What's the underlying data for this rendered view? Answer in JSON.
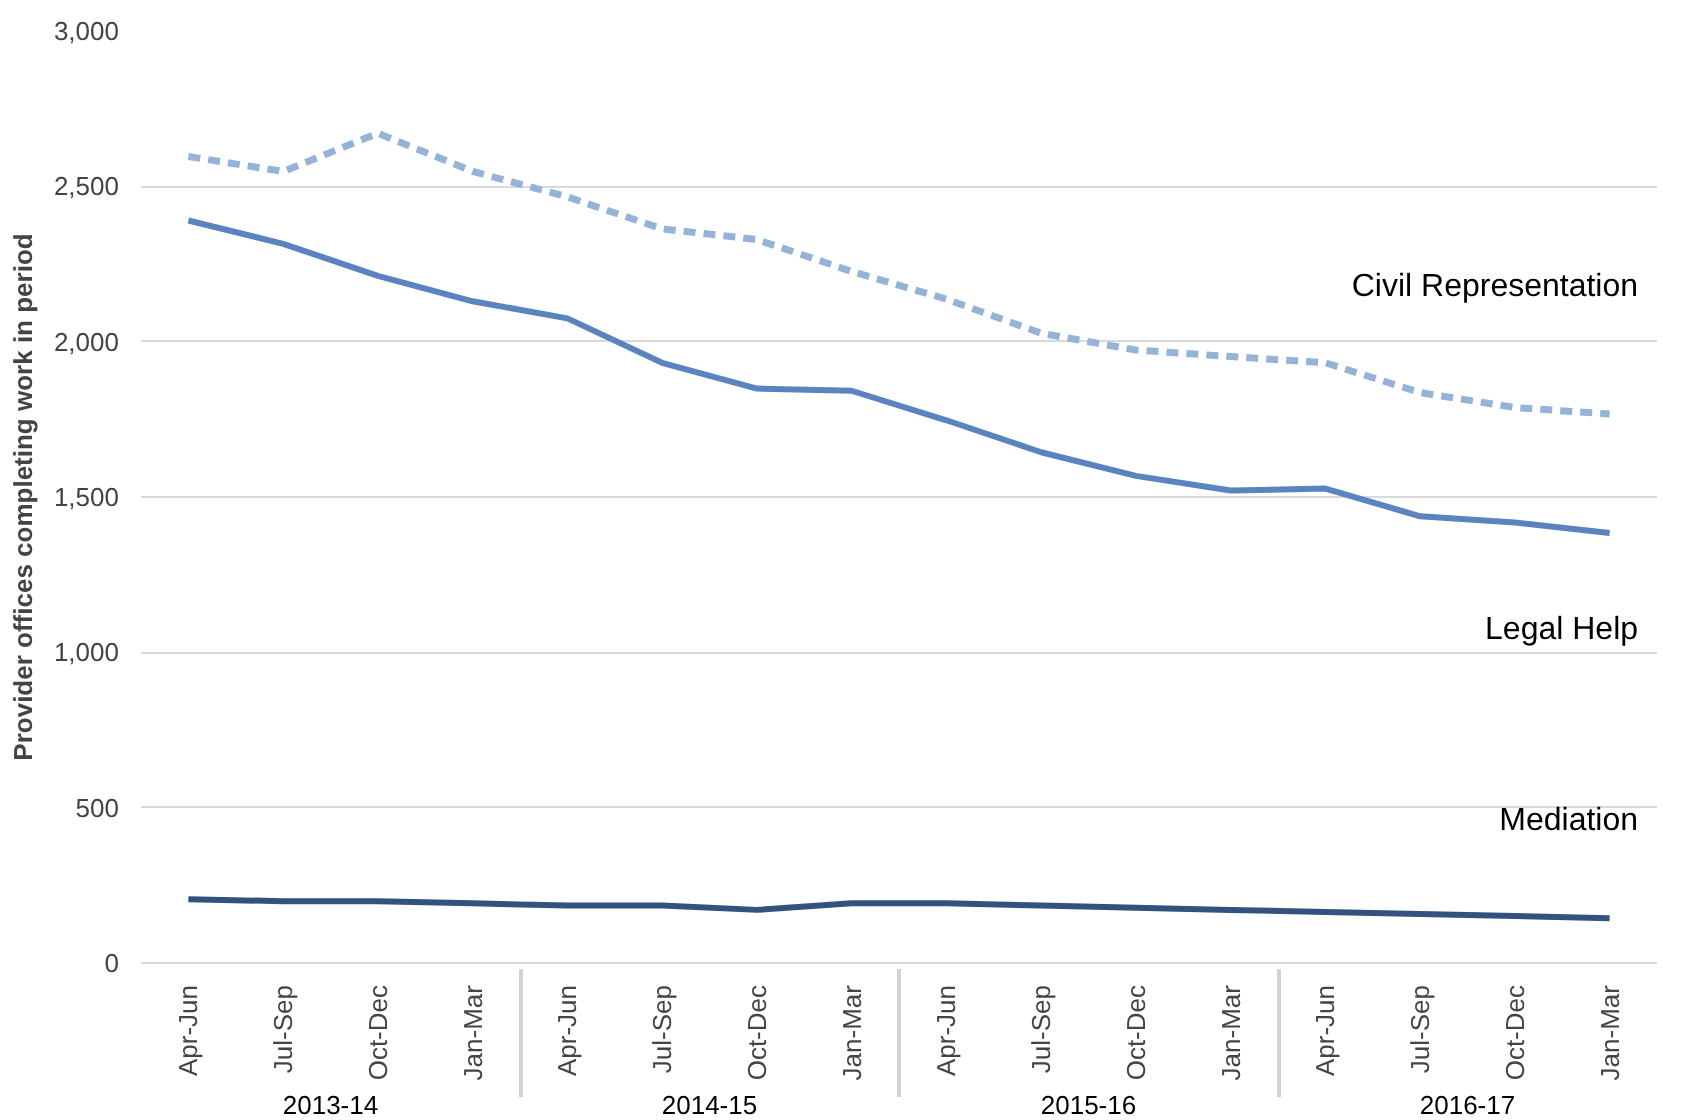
{
  "chart_data": {
    "type": "line",
    "ylabel": "Provider offices completing work in period",
    "categories": [
      "Apr-Jun",
      "Jul-Sep",
      "Oct-Dec",
      "Jan-Mar",
      "Apr-Jun",
      "Jul-Sep",
      "Oct-Dec",
      "Jan-Mar",
      "Apr-Jun",
      "Jul-Sep",
      "Oct-Dec",
      "Jan-Mar",
      "Apr-Jun",
      "Jul-Sep",
      "Oct-Dec",
      "Jan-Mar"
    ],
    "annotations": [
      "2013-14",
      "2014-15",
      "2015-16",
      "2016-17"
    ],
    "series": [
      {
        "name": "Civil Representation",
        "color": "#95b3d7",
        "line_style": "dashed",
        "values": [
          2596,
          2548,
          2671,
          2548,
          2466,
          2363,
          2329,
          2226,
          2137,
          2027,
          1973,
          1952,
          1932,
          1836,
          1788,
          1767
        ]
      },
      {
        "name": "Legal Help",
        "color": "#5a83c0",
        "line_style": "solid",
        "values": [
          2390,
          2315,
          2212,
          2130,
          2075,
          1932,
          1849,
          1842,
          1747,
          1644,
          1568,
          1521,
          1527,
          1438,
          1418,
          1384
        ]
      },
      {
        "name": "Mediation",
        "color": "#35527f",
        "line_style": "solid",
        "values": [
          205,
          199,
          199,
          192,
          185,
          185,
          171,
          192,
          192,
          185,
          178,
          171,
          164,
          158,
          151,
          144
        ]
      }
    ],
    "ylim": [
      0,
      3000
    ],
    "yticks": [
      {
        "value": 0,
        "label": "0"
      },
      {
        "value": 500,
        "label": "500"
      },
      {
        "value": 1000,
        "label": "1,000"
      },
      {
        "value": 1500,
        "label": "1,500"
      },
      {
        "value": 2000,
        "label": "2,000"
      },
      {
        "value": 2500,
        "label": "2,500"
      },
      {
        "value": 3000,
        "label": "3,000"
      }
    ],
    "grid": "y",
    "marker": "none"
  }
}
